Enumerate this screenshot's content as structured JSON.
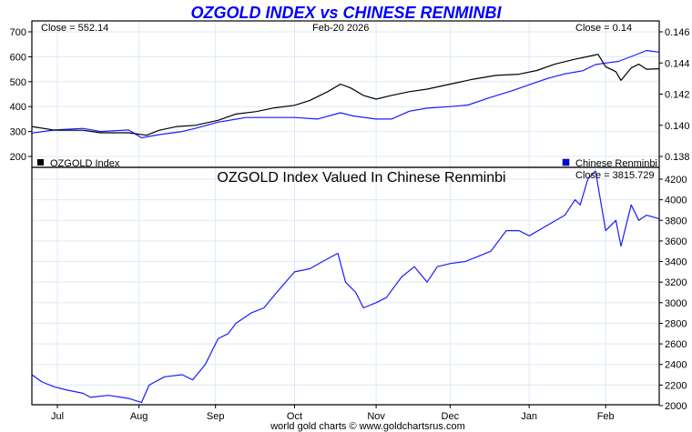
{
  "title": "OZGOLD INDEX vs CHINESE RENMINBI",
  "footer": "world gold charts © www.goldchartsrus.com",
  "colors": {
    "gold": "#000000",
    "currency": "#1a1aff",
    "title": "#0000ff",
    "grid": "#dce9f7"
  },
  "chart_data": [
    {
      "type": "line",
      "panel": "top",
      "close_left": "Close = 552.14",
      "date_label": "Feb-20  2026",
      "close_right": "Close = 0.14",
      "x_unit": "days since Jun-21 2025",
      "xlim": [
        0,
        246
      ],
      "ylim_left": [
        200,
        700
      ],
      "ylim_right": [
        0.138,
        0.146
      ],
      "left_ticks": [
        "700",
        "600",
        "500",
        "400",
        "300",
        "200"
      ],
      "left_tick_values": [
        700,
        600,
        500,
        400,
        300,
        200
      ],
      "right_ticks": [
        "0.146",
        "0.144",
        "0.142",
        "0.140",
        "0.138"
      ],
      "right_tick_values": [
        0.146,
        0.144,
        0.142,
        0.14,
        0.138
      ],
      "legend_left": "OZGOLD Index",
      "legend_right": "Chinese Renminbi",
      "series": [
        {
          "name": "OZGOLD Index",
          "axis": "left",
          "x": [
            0,
            9,
            20,
            27,
            38,
            45,
            50,
            57,
            64,
            73,
            80,
            88,
            95,
            103,
            109,
            116,
            121,
            125,
            130,
            135,
            141,
            148,
            155,
            164,
            173,
            182,
            191,
            198,
            205,
            213,
            220,
            222,
            225,
            229,
            231,
            235,
            238,
            241,
            246
          ],
          "values": [
            320,
            305,
            305,
            295,
            295,
            285,
            305,
            320,
            325,
            345,
            370,
            380,
            395,
            405,
            425,
            460,
            490,
            475,
            445,
            430,
            445,
            460,
            470,
            490,
            510,
            525,
            530,
            545,
            570,
            590,
            605,
            610,
            560,
            540,
            505,
            555,
            570,
            550,
            552
          ]
        },
        {
          "name": "Chinese Renminbi",
          "axis": "right",
          "x": [
            0,
            9,
            20,
            27,
            38,
            43,
            50,
            59,
            64,
            73,
            84,
            95,
            103,
            112,
            121,
            126,
            135,
            141,
            148,
            155,
            164,
            171,
            180,
            188,
            195,
            202,
            209,
            216,
            221,
            225,
            230,
            238,
            241,
            246
          ],
          "values": [
            0.1395,
            0.1397,
            0.1398,
            0.1396,
            0.1397,
            0.1392,
            0.1394,
            0.1396,
            0.1398,
            0.1402,
            0.1405,
            0.1405,
            0.1405,
            0.1404,
            0.1408,
            0.1406,
            0.1404,
            0.1404,
            0.1409,
            0.1411,
            0.1412,
            0.1413,
            0.1418,
            0.1422,
            0.1426,
            0.143,
            0.1433,
            0.1435,
            0.1439,
            0.144,
            0.1441,
            0.1446,
            0.1448,
            0.1447
          ]
        }
      ]
    },
    {
      "type": "line",
      "panel": "bottom",
      "title": "OZGOLD Index Valued In Chinese Renminbi",
      "close_right": "Close = 3815.729",
      "xlim": [
        0,
        246
      ],
      "ylim": [
        2000,
        4400
      ],
      "right_ticks": [
        "4200",
        "4000",
        "3800",
        "3600",
        "3400",
        "3200",
        "3000",
        "2800",
        "2600",
        "2400",
        "2200",
        "2000"
      ],
      "right_tick_values": [
        4200,
        4000,
        3800,
        3600,
        3400,
        3200,
        3000,
        2800,
        2600,
        2400,
        2200,
        2000
      ],
      "x_ticks": [
        "Jul",
        "Aug",
        "Sep",
        "Oct",
        "Nov",
        "Dec",
        "Jan",
        "Feb"
      ],
      "x_tick_values": [
        10,
        42,
        72,
        103,
        135,
        164,
        195,
        225
      ],
      "series": [
        {
          "name": "OZGOLD in CNY",
          "x": [
            0,
            4,
            9,
            14,
            20,
            23,
            30,
            38,
            43,
            46,
            52,
            59,
            63,
            68,
            73,
            77,
            80,
            86,
            91,
            96,
            103,
            109,
            114,
            120,
            123,
            127,
            130,
            135,
            139,
            145,
            150,
            155,
            159,
            164,
            170,
            175,
            180,
            186,
            191,
            195,
            202,
            209,
            213,
            215,
            218,
            221,
            225,
            229,
            231,
            235,
            238,
            241,
            246
          ],
          "values": [
            2300,
            2230,
            2180,
            2150,
            2120,
            2080,
            2100,
            2070,
            2030,
            2200,
            2280,
            2300,
            2250,
            2400,
            2650,
            2700,
            2800,
            2900,
            2950,
            3100,
            3300,
            3330,
            3400,
            3480,
            3200,
            3100,
            2950,
            3000,
            3050,
            3250,
            3350,
            3200,
            3350,
            3380,
            3400,
            3450,
            3500,
            3700,
            3700,
            3650,
            3750,
            3850,
            4000,
            3950,
            4200,
            4280,
            3700,
            3800,
            3550,
            3950,
            3800,
            3850,
            3815
          ]
        }
      ]
    }
  ]
}
